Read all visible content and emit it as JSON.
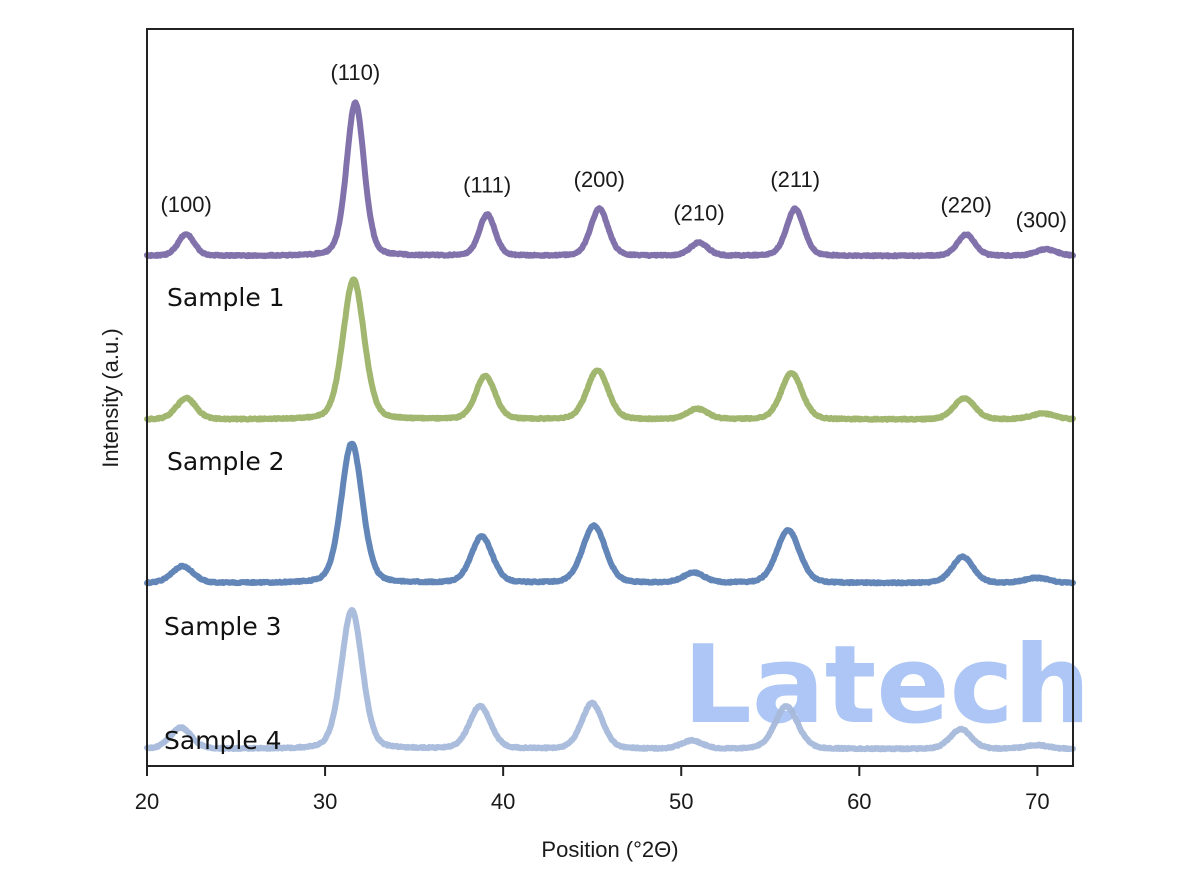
{
  "chart_data": {
    "type": "line",
    "title": "",
    "xlabel": "Position (°2Θ)",
    "ylabel": "Intensity (a.u.)",
    "xlim": [
      20,
      72
    ],
    "ylim": [
      0,
      100
    ],
    "x_ticks": [
      20,
      30,
      40,
      50,
      60,
      70
    ],
    "y_ticks": [],
    "grid": false,
    "legend": "none",
    "stacked_offset": true,
    "peak_annotations": [
      {
        "label": "(100)",
        "x": 22.2
      },
      {
        "label": "(110)",
        "x": 31.7
      },
      {
        "label": "(111)",
        "x": 39.1
      },
      {
        "label": "(200)",
        "x": 45.4
      },
      {
        "label": "(210)",
        "x": 51.0
      },
      {
        "label": "(211)",
        "x": 56.4
      },
      {
        "label": "(220)",
        "x": 66.0
      },
      {
        "label": "(300)",
        "x": 70.5
      }
    ],
    "series": [
      {
        "name": "Sample 1",
        "color": "#7b6aa6",
        "baseline": 69.2,
        "peaks": [
          {
            "x": 22.2,
            "y": 72.2,
            "width": 0.45
          },
          {
            "x": 31.7,
            "y": 90.0,
            "width": 0.5
          },
          {
            "x": 39.1,
            "y": 74.8,
            "width": 0.45
          },
          {
            "x": 45.4,
            "y": 75.6,
            "width": 0.5
          },
          {
            "x": 51.0,
            "y": 71.0,
            "width": 0.5
          },
          {
            "x": 56.4,
            "y": 75.6,
            "width": 0.5
          },
          {
            "x": 66.0,
            "y": 72.1,
            "width": 0.5
          },
          {
            "x": 70.5,
            "y": 70.1,
            "width": 0.6
          }
        ]
      },
      {
        "name": "Sample 2",
        "color": "#9cb266",
        "baseline": 47.0,
        "peaks": [
          {
            "x": 22.2,
            "y": 49.9,
            "width": 0.55
          },
          {
            "x": 31.6,
            "y": 66.0,
            "width": 0.6
          },
          {
            "x": 39.0,
            "y": 52.9,
            "width": 0.55
          },
          {
            "x": 45.3,
            "y": 53.7,
            "width": 0.6
          },
          {
            "x": 50.9,
            "y": 48.4,
            "width": 0.6
          },
          {
            "x": 56.2,
            "y": 53.3,
            "width": 0.6
          },
          {
            "x": 65.9,
            "y": 49.9,
            "width": 0.6
          },
          {
            "x": 70.3,
            "y": 47.8,
            "width": 0.7
          }
        ]
      },
      {
        "name": "Sample 3",
        "color": "#5b80b5",
        "baseline": 24.8,
        "peaks": [
          {
            "x": 22.0,
            "y": 27.1,
            "width": 0.6
          },
          {
            "x": 31.5,
            "y": 43.8,
            "width": 0.6
          },
          {
            "x": 38.8,
            "y": 31.1,
            "width": 0.6
          },
          {
            "x": 45.1,
            "y": 32.6,
            "width": 0.65
          },
          {
            "x": 50.7,
            "y": 26.2,
            "width": 0.6
          },
          {
            "x": 56.0,
            "y": 32.0,
            "width": 0.65
          },
          {
            "x": 65.8,
            "y": 28.4,
            "width": 0.6
          },
          {
            "x": 70.0,
            "y": 25.5,
            "width": 0.7
          }
        ]
      },
      {
        "name": "Sample 4",
        "color": "#a6b9da",
        "baseline": 2.3,
        "peaks": [
          {
            "x": 21.9,
            "y": 5.2,
            "width": 0.6
          },
          {
            "x": 31.5,
            "y": 21.1,
            "width": 0.6
          },
          {
            "x": 38.7,
            "y": 8.1,
            "width": 0.6
          },
          {
            "x": 45.0,
            "y": 8.5,
            "width": 0.6
          },
          {
            "x": 50.6,
            "y": 3.4,
            "width": 0.6
          },
          {
            "x": 55.9,
            "y": 8.1,
            "width": 0.65
          },
          {
            "x": 65.7,
            "y": 5.0,
            "width": 0.6
          },
          {
            "x": 70.0,
            "y": 2.8,
            "width": 0.7
          }
        ]
      }
    ]
  },
  "watermark": {
    "text": "Latech",
    "color": "#adc6f5"
  }
}
